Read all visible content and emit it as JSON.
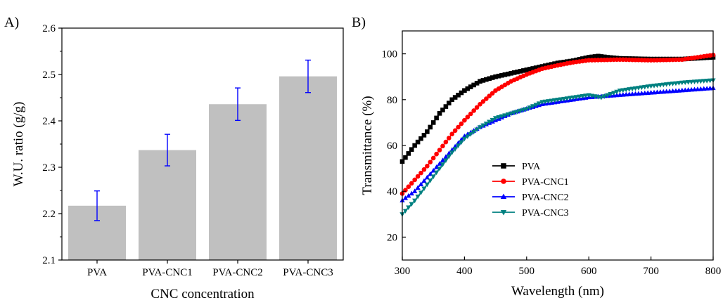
{
  "chart_data": [
    {
      "panel": "A)",
      "type": "bar",
      "title": "",
      "xlabel": "CNC concentration",
      "ylabel": "W.U. ratio (g/g)",
      "categories": [
        "PVA",
        "PVA-CNC1",
        "PVA-CNC2",
        "PVA-CNC3"
      ],
      "values": [
        2.217,
        2.337,
        2.436,
        2.496
      ],
      "errors": [
        0.032,
        0.034,
        0.035,
        0.035
      ],
      "ylim": [
        2.1,
        2.6
      ],
      "yticks": [
        "2.1",
        "2.2",
        "2.3",
        "2.4",
        "2.5",
        "2.6"
      ],
      "bar_color": "#c0c0c0",
      "error_color": "#0000ff",
      "grid": false
    },
    {
      "panel": "B)",
      "type": "line",
      "title": "",
      "xlabel": "Wavelength (nm)",
      "ylabel": "Transmittance (%)",
      "xlim": [
        300,
        800
      ],
      "ylim": [
        10,
        110
      ],
      "xticks": [
        "300",
        "400",
        "500",
        "600",
        "700",
        "800"
      ],
      "yticks": [
        "20",
        "40",
        "60",
        "80",
        "100"
      ],
      "legend": "center-left",
      "grid": false,
      "series": [
        {
          "name": "PVA",
          "color": "#000000",
          "marker": "square",
          "points": [
            [
              300,
              53
            ],
            [
              320,
              60
            ],
            [
              340,
              66
            ],
            [
              360,
              74
            ],
            [
              380,
              80
            ],
            [
              400,
              84
            ],
            [
              425,
              88
            ],
            [
              450,
              90
            ],
            [
              475,
              91.5
            ],
            [
              500,
              93
            ],
            [
              525,
              94.5
            ],
            [
              550,
              96
            ],
            [
              575,
              97
            ],
            [
              600,
              98.5
            ],
            [
              615,
              99
            ],
            [
              630,
              98.5
            ],
            [
              650,
              98
            ],
            [
              700,
              97.7
            ],
            [
              750,
              97.7
            ],
            [
              800,
              98.5
            ]
          ]
        },
        {
          "name": "PVA-CNC1",
          "color": "#ff0000",
          "marker": "circle",
          "points": [
            [
              300,
              39
            ],
            [
              320,
              45
            ],
            [
              340,
              51
            ],
            [
              360,
              58
            ],
            [
              380,
              65
            ],
            [
              400,
              71
            ],
            [
              425,
              78
            ],
            [
              450,
              84
            ],
            [
              475,
              88
            ],
            [
              500,
              91
            ],
            [
              525,
              93.5
            ],
            [
              550,
              95
            ],
            [
              575,
              96.3
            ],
            [
              600,
              97.2
            ],
            [
              650,
              97.5
            ],
            [
              700,
              97.2
            ],
            [
              750,
              97.5
            ],
            [
              800,
              99.5
            ]
          ]
        },
        {
          "name": "PVA-CNC2",
          "color": "#0000ff",
          "marker": "triangle-up",
          "points": [
            [
              300,
              36
            ],
            [
              320,
              40
            ],
            [
              340,
              46
            ],
            [
              360,
              52
            ],
            [
              380,
              58
            ],
            [
              400,
              64
            ],
            [
              425,
              68
            ],
            [
              450,
              71
            ],
            [
              475,
              74
            ],
            [
              500,
              76
            ],
            [
              525,
              78
            ],
            [
              550,
              79
            ],
            [
              575,
              80
            ],
            [
              600,
              81
            ],
            [
              650,
              82
            ],
            [
              700,
              83
            ],
            [
              750,
              84
            ],
            [
              800,
              85
            ]
          ]
        },
        {
          "name": "PVA-CNC3",
          "color": "#008080",
          "marker": "triangle-down",
          "points": [
            [
              300,
              30
            ],
            [
              320,
              36
            ],
            [
              340,
              43
            ],
            [
              360,
              50
            ],
            [
              380,
              57
            ],
            [
              400,
              63
            ],
            [
              425,
              68
            ],
            [
              450,
              72
            ],
            [
              475,
              74
            ],
            [
              500,
              76
            ],
            [
              525,
              79
            ],
            [
              550,
              80
            ],
            [
              575,
              81
            ],
            [
              600,
              82
            ],
            [
              620,
              81
            ],
            [
              650,
              84
            ],
            [
              700,
              86
            ],
            [
              750,
              87.5
            ],
            [
              800,
              88.5
            ]
          ]
        }
      ]
    }
  ]
}
